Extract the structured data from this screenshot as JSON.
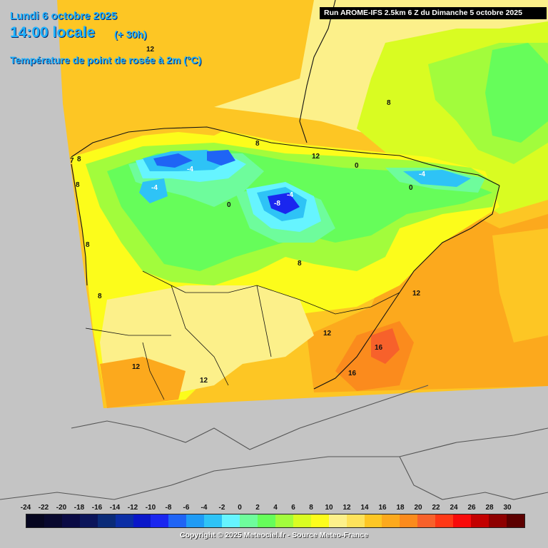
{
  "header": {
    "date": "Lundi 6 octobre 2025",
    "time": "14:00 locale",
    "offset": "(+ 30h)",
    "parameter": "Température de point de rosée à 2m (°C)"
  },
  "run_info": "Run AROME-IFS 2.5km 6 Z du Dimanche 5 octobre 2025",
  "contour_labels": [
    "12",
    "8",
    "8",
    "-4",
    "-4",
    "0",
    "-8",
    "-4",
    "0",
    "-4",
    "0",
    "8",
    "8",
    "8",
    "12",
    "12",
    "12",
    "12",
    "12",
    "16",
    "16",
    "7",
    "8",
    "8"
  ],
  "legend": {
    "labels": [
      "-24",
      "-22",
      "-20",
      "-18",
      "-16",
      "-14",
      "-12",
      "-10",
      "-8",
      "-6",
      "-4",
      "-2",
      "0",
      "2",
      "4",
      "6",
      "8",
      "10",
      "12",
      "14",
      "16",
      "18",
      "20",
      "22",
      "24",
      "26",
      "28",
      "30"
    ],
    "colors": [
      "#060620",
      "#08082e",
      "#0a0a44",
      "#0b155a",
      "#0a2b78",
      "#0b2ea5",
      "#0a17c9",
      "#1a26ef",
      "#1f64f5",
      "#1f9bf5",
      "#2ec3f6",
      "#66f4ff",
      "#6efc9c",
      "#66fd5a",
      "#a2fc3c",
      "#d9fc22",
      "#fcfc1b",
      "#fcf08a",
      "#fde25b",
      "#fdc624",
      "#fca91d",
      "#fb8b1d",
      "#f7612b",
      "#fe3816",
      "#f80a0a",
      "#c30000",
      "#8e0000",
      "#5c0000"
    ]
  },
  "copyright": "Copyright © 2025 Meteociel.fr - Source Meteo-France"
}
